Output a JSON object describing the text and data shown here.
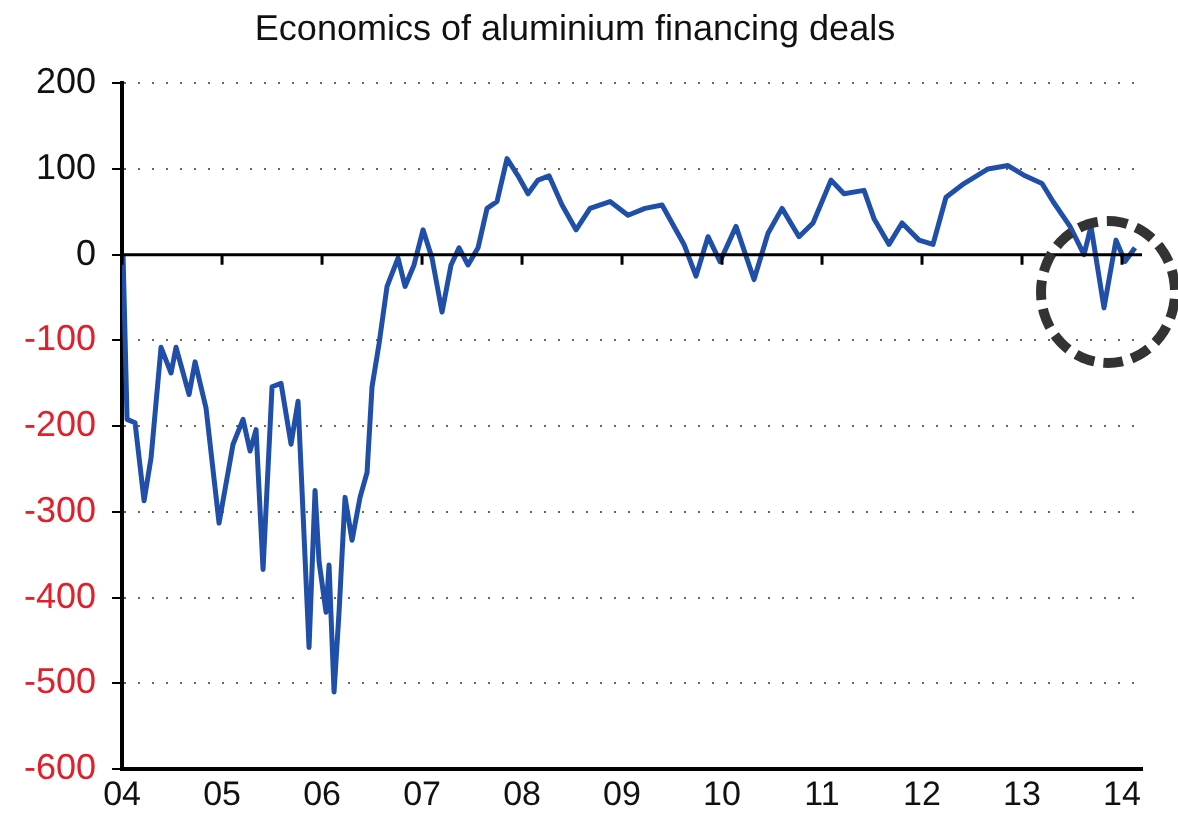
{
  "chart_data": {
    "type": "line",
    "title": "Economics of aluminium financing deals",
    "x": [
      2004.01,
      2004.05,
      2004.13,
      2004.22,
      2004.29,
      2004.39,
      2004.49,
      2004.54,
      2004.67,
      2004.73,
      2004.84,
      2004.97,
      2005.11,
      2005.21,
      2005.28,
      2005.34,
      2005.41,
      2005.5,
      2005.59,
      2005.69,
      2005.76,
      2005.87,
      2005.93,
      2005.97,
      2006.04,
      2006.07,
      2006.12,
      2006.17,
      2006.23,
      2006.3,
      2006.38,
      2006.45,
      2006.5,
      2006.57,
      2006.65,
      2006.76,
      2006.83,
      2006.92,
      2007.01,
      2007.1,
      2007.2,
      2007.29,
      2007.37,
      2007.46,
      2007.56,
      2007.65,
      2007.75,
      2007.85,
      2007.96,
      2008.06,
      2008.16,
      2008.27,
      2008.4,
      2008.54,
      2008.68,
      2008.88,
      2009.06,
      2009.23,
      2009.4,
      2009.5,
      2009.62,
      2009.74,
      2009.86,
      2009.98,
      2010.14,
      2010.32,
      2010.46,
      2010.6,
      2010.77,
      2010.91,
      2011.09,
      2011.22,
      2011.42,
      2011.52,
      2011.67,
      2011.8,
      2011.97,
      2012.11,
      2012.24,
      2012.42,
      2012.66,
      2012.86,
      2013.03,
      2013.2,
      2013.31,
      2013.48,
      2013.62,
      2013.69,
      2013.82,
      2013.94,
      2014.03,
      2014.13
    ],
    "values": [
      0,
      -192,
      -196,
      -287,
      -237,
      -108,
      -138,
      -108,
      -163,
      -125,
      -179,
      -313,
      -221,
      -192,
      -229,
      -204,
      -367,
      -154,
      -150,
      -221,
      -171,
      -458,
      -275,
      -358,
      -417,
      -362,
      -510,
      -417,
      -283,
      -333,
      -283,
      -254,
      -154,
      -104,
      -37,
      -4,
      -37,
      -12,
      29,
      -4,
      -67,
      -12,
      8,
      -12,
      8,
      54,
      62,
      112,
      92,
      71,
      87,
      92,
      58,
      29,
      54,
      62,
      46,
      54,
      58,
      37,
      12,
      -25,
      21,
      -8,
      33,
      -29,
      25,
      54,
      21,
      37,
      87,
      71,
      75,
      42,
      12,
      37,
      17,
      12,
      67,
      83,
      100,
      104,
      92,
      83,
      62,
      33,
      0,
      33,
      -62,
      17,
      -8,
      8
    ],
    "color": "#1f4fa8",
    "xlim": [
      2004,
      2014.2
    ],
    "xticks": [
      {
        "value": 2004,
        "label": "04"
      },
      {
        "value": 2005,
        "label": "05"
      },
      {
        "value": 2006,
        "label": "06"
      },
      {
        "value": 2007,
        "label": "07"
      },
      {
        "value": 2008,
        "label": "08"
      },
      {
        "value": 2009,
        "label": "09"
      },
      {
        "value": 2010,
        "label": "10"
      },
      {
        "value": 2011,
        "label": "11"
      },
      {
        "value": 2012,
        "label": "12"
      },
      {
        "value": 2013,
        "label": "13"
      },
      {
        "value": 2014,
        "label": "14"
      }
    ],
    "ylim": [
      -600,
      200
    ],
    "yticks": [
      -600,
      -500,
      -400,
      -300,
      -200,
      -100,
      0,
      100,
      200
    ],
    "grid": "y",
    "legend": false,
    "marker": "none",
    "line_style": "solid",
    "ref_lines": [
      {
        "axis": "y",
        "value": 0,
        "color": "#000000"
      }
    ]
  }
}
